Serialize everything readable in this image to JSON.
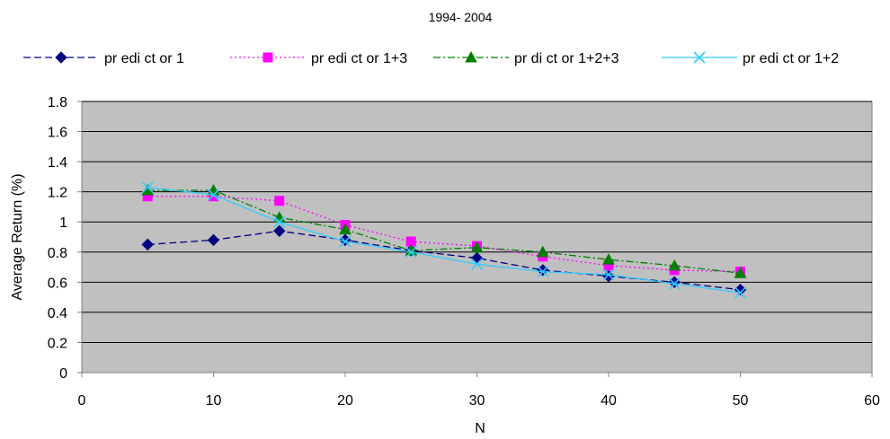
{
  "chart_data": {
    "type": "line",
    "title": "1994- 2004",
    "xlabel": "N",
    "ylabel": "Average Return (%)",
    "xlim": [
      0,
      60
    ],
    "ylim": [
      0,
      1.8
    ],
    "x_ticks": [
      0,
      10,
      20,
      30,
      40,
      50,
      60
    ],
    "y_ticks": [
      0,
      0.2,
      0.4,
      0.6,
      0.8,
      1,
      1.2,
      1.4,
      1.6,
      1.8
    ],
    "x_tick_labels": [
      "0",
      "10",
      "20",
      "30",
      "40",
      "50",
      "60"
    ],
    "y_tick_labels": [
      "0",
      "0.2",
      "0.4",
      "0.6",
      "0.8",
      "1",
      "1.2",
      "1.4",
      "1.6",
      "1.8"
    ],
    "grid": "horizontal",
    "plot_background": "#c0c0c0",
    "legend_position": "top",
    "x": [
      5,
      10,
      15,
      20,
      25,
      30,
      35,
      40,
      45,
      50
    ],
    "series": [
      {
        "name": "pr edi ct or 1",
        "color": "#000080",
        "line_style": "dashed",
        "marker": "diamond",
        "values": [
          0.85,
          0.88,
          0.94,
          0.88,
          0.81,
          0.76,
          0.68,
          0.64,
          0.6,
          0.55
        ]
      },
      {
        "name": "pr edi ct or 1+3",
        "color": "#ff00ff",
        "line_style": "dotted",
        "marker": "square",
        "values": [
          1.17,
          1.17,
          1.14,
          0.98,
          0.87,
          0.84,
          0.77,
          0.71,
          0.68,
          0.67
        ]
      },
      {
        "name": "pr di ct or 1+2+3",
        "color": "#008000",
        "line_style": "dashdot",
        "marker": "triangle",
        "values": [
          1.21,
          1.21,
          1.03,
          0.95,
          0.81,
          0.83,
          0.8,
          0.75,
          0.71,
          0.66
        ]
      },
      {
        "name": "pr edi ct or 1+2",
        "color": "#33ccff",
        "line_style": "solid",
        "marker": "x",
        "values": [
          1.23,
          1.18,
          1.0,
          0.87,
          0.8,
          0.72,
          0.67,
          0.65,
          0.59,
          0.53
        ]
      }
    ]
  }
}
